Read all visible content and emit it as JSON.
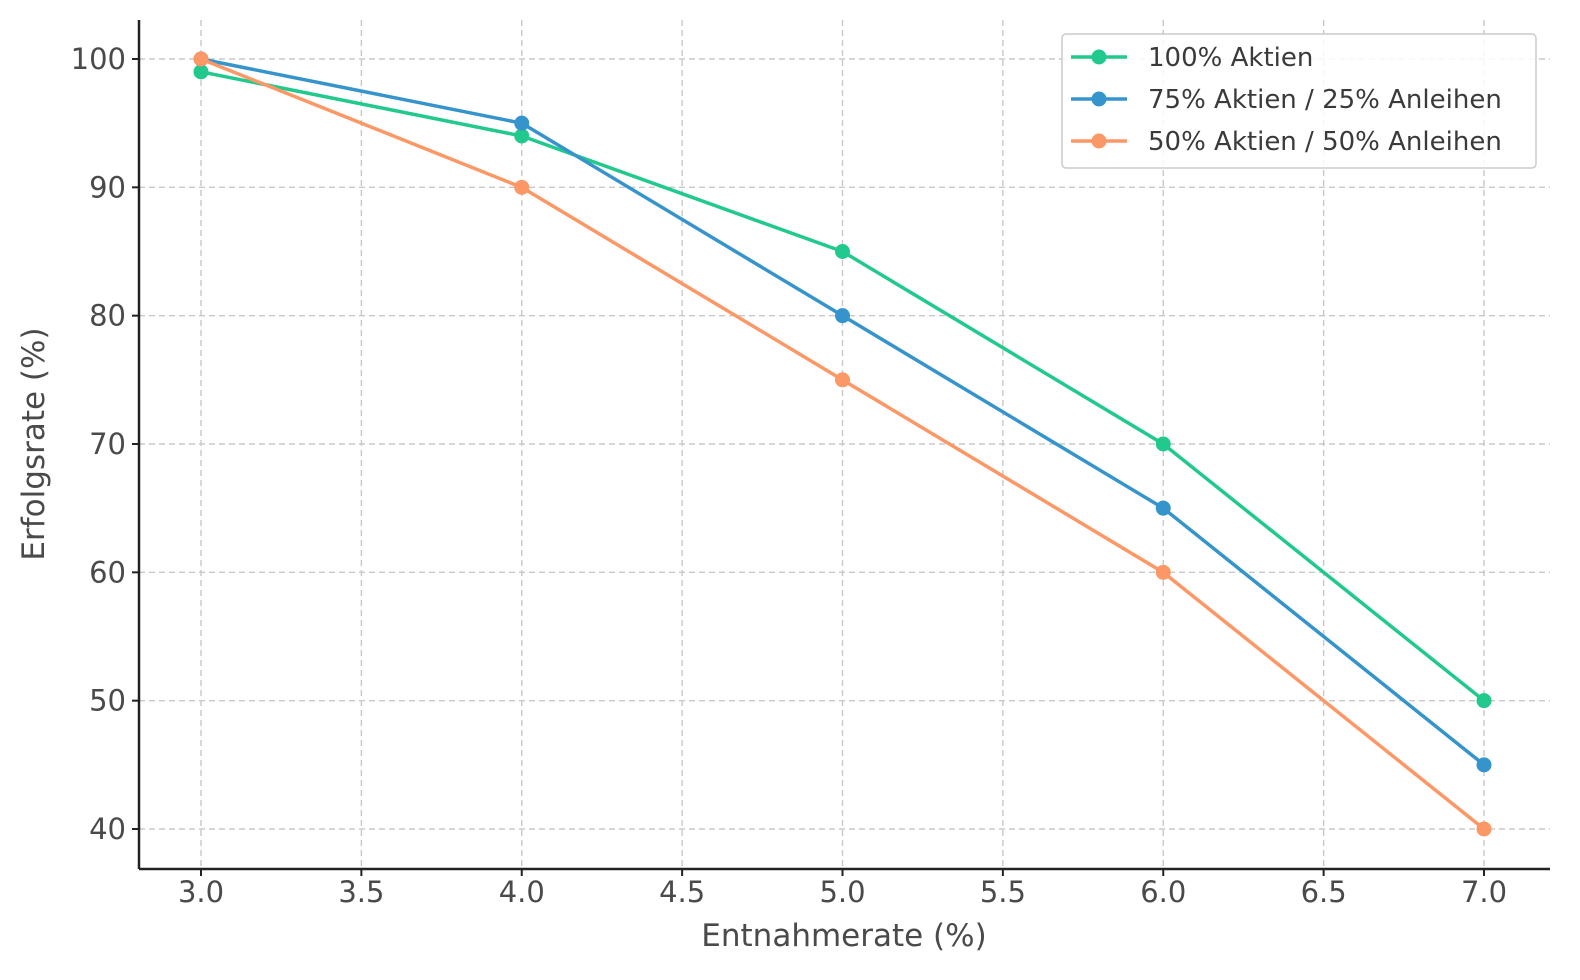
{
  "chart_data": {
    "type": "line",
    "title": "",
    "xlabel": "Entnahmerate (%)",
    "ylabel": "Erfolgsrate (%)",
    "xlim": [
      2.8,
      7.2
    ],
    "ylim": [
      37,
      103
    ],
    "xticks": [
      3.0,
      3.5,
      4.0,
      4.5,
      5.0,
      5.5,
      6.0,
      6.5,
      7.0
    ],
    "xtick_labels": [
      "3.0",
      "3.5",
      "4.0",
      "4.5",
      "5.0",
      "5.5",
      "6.0",
      "6.5",
      "7.0"
    ],
    "yticks": [
      40,
      50,
      60,
      70,
      80,
      90,
      100
    ],
    "ytick_labels": [
      "40",
      "50",
      "60",
      "70",
      "80",
      "90",
      "100"
    ],
    "grid": true,
    "legend_position": "top-right",
    "x": [
      3.0,
      4.0,
      5.0,
      6.0,
      7.0
    ],
    "series": [
      {
        "name": "100% Aktien",
        "color": "#22c98c",
        "values": [
          99,
          94,
          85,
          70,
          50
        ]
      },
      {
        "name": "75% Aktien / 25% Anleihen",
        "color": "#3594cc",
        "values": [
          100,
          95,
          80,
          65,
          45
        ]
      },
      {
        "name": "50% Aktien / 50% Anleihen",
        "color": "#fc9766",
        "values": [
          100,
          90,
          75,
          60,
          40
        ]
      }
    ]
  }
}
